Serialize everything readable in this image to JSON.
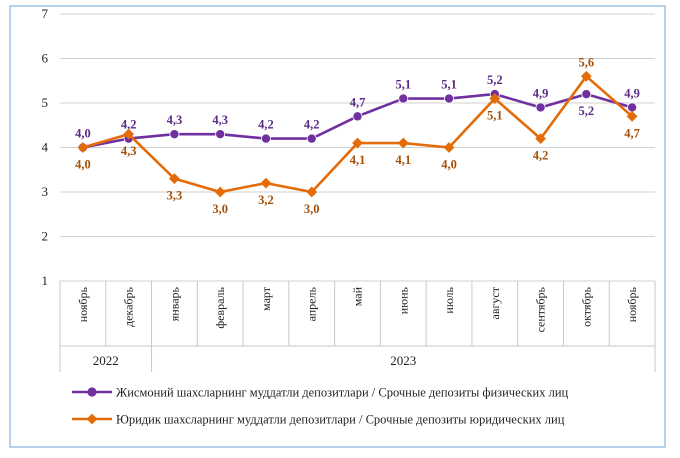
{
  "chart_data": {
    "type": "line",
    "categories": [
      "ноябрь",
      "декабрь",
      "январь",
      "февраль",
      "март",
      "апрель",
      "май",
      "июнь",
      "июль",
      "август",
      "сентябрь",
      "октябрь",
      "ноябрь"
    ],
    "years": [
      {
        "label": "2022",
        "span": [
          0,
          1
        ]
      },
      {
        "label": "2023",
        "span": [
          2,
          12
        ]
      }
    ],
    "ylim": [
      1,
      7
    ],
    "yticks": [
      1,
      2,
      3,
      4,
      5,
      6,
      7
    ],
    "grid": true,
    "legend_position": "bottom",
    "series": [
      {
        "name": "Жисмоний шахсларнинг муддатли депозитлари / Срочные депозиты физических лиц",
        "color": "#7030a0",
        "marker": "circle",
        "values": [
          4.0,
          4.2,
          4.3,
          4.3,
          4.2,
          4.2,
          4.7,
          5.1,
          5.1,
          5.2,
          4.9,
          5.2,
          4.9
        ],
        "labels": [
          "4,0",
          "4,2",
          "4,3",
          "4,3",
          "4,2",
          "4,2",
          "4,7",
          "5,1",
          "5,1",
          "5,2",
          "4,9",
          "5,2",
          "4,9"
        ],
        "label_pos": [
          "above",
          "above",
          "above",
          "above",
          "above",
          "above",
          "above",
          "above",
          "above",
          "above",
          "above",
          "below",
          "above"
        ]
      },
      {
        "name": "Юридик шахсларнинг муддатли депозитлари / Срочные депозиты юридических лиц",
        "color": "#e36c09",
        "marker": "diamond",
        "values": [
          4.0,
          4.3,
          3.3,
          3.0,
          3.2,
          3.0,
          4.1,
          4.1,
          4.0,
          5.1,
          4.2,
          5.6,
          4.7
        ],
        "labels": [
          "4,0",
          "4,3",
          "3,3",
          "3,0",
          "3,2",
          "3,0",
          "4,1",
          "4,1",
          "4,0",
          "5,1",
          "4,2",
          "5,6",
          "4,7"
        ],
        "label_pos": [
          "below",
          "below",
          "below",
          "below",
          "below",
          "below",
          "below",
          "below",
          "below",
          "below",
          "below",
          "above",
          "below"
        ]
      }
    ]
  }
}
